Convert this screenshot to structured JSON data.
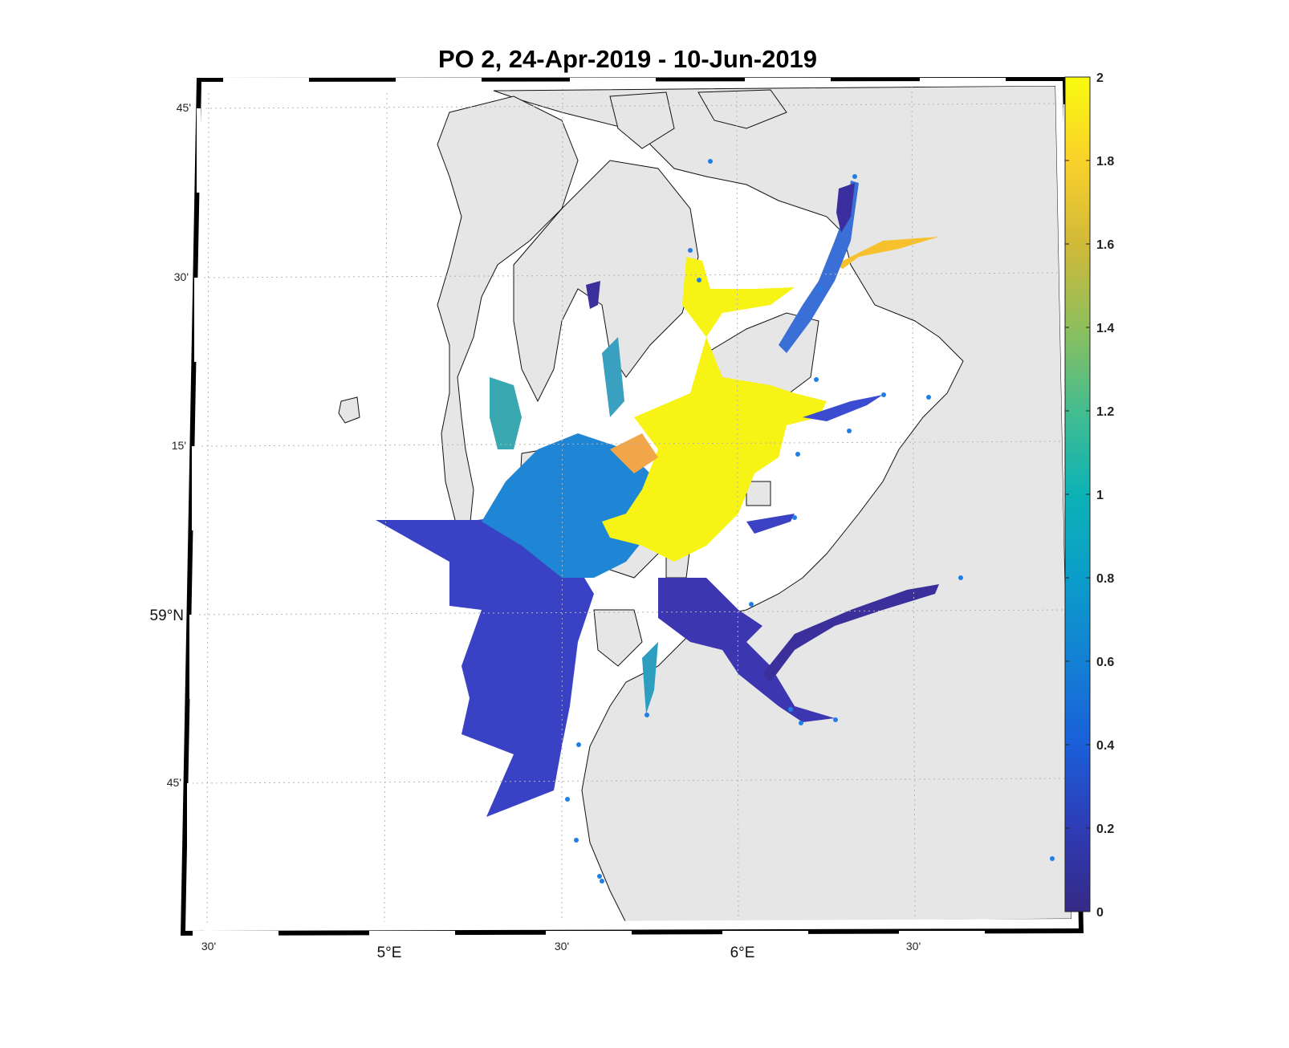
{
  "title": "PO 2, 24-Apr-2019  - 10-Jun-2019",
  "colormap": "parula",
  "colors": {
    "land": "#e6e6e6",
    "sea_background": "#ffffff",
    "coastline": "#111111",
    "station_dot": "#1f7fe6",
    "grid": "#b5b5b5"
  },
  "axes": {
    "lat_ticks": [
      "45'",
      "30'",
      "15'",
      "59°N",
      "45'"
    ],
    "lon_ticks": [
      "30'",
      "5°E",
      "30'",
      "6°E",
      "30'"
    ]
  },
  "colorbar": {
    "min": 0,
    "max": 2,
    "ticks": [
      "0",
      "0.2",
      "0.4",
      "0.6",
      "0.8",
      "1",
      "1.2",
      "1.4",
      "1.6",
      "1.8",
      "2"
    ]
  },
  "regions": [
    {
      "id": "outer-shelf",
      "value": 0.25
    },
    {
      "id": "central-basin",
      "value": 0.6
    },
    {
      "id": "inner-fjords-north",
      "value": 1.95
    },
    {
      "id": "upper-fjord-arm",
      "value": 1.75
    },
    {
      "id": "southeast-fjord",
      "value": 0.2
    },
    {
      "id": "far-southeast-fjord",
      "value": 0.15
    },
    {
      "id": "northeast-fjord",
      "value": 0.45
    },
    {
      "id": "north-tip-fjord",
      "value": 0.15
    },
    {
      "id": "west-inlet",
      "value": 0.8
    }
  ]
}
